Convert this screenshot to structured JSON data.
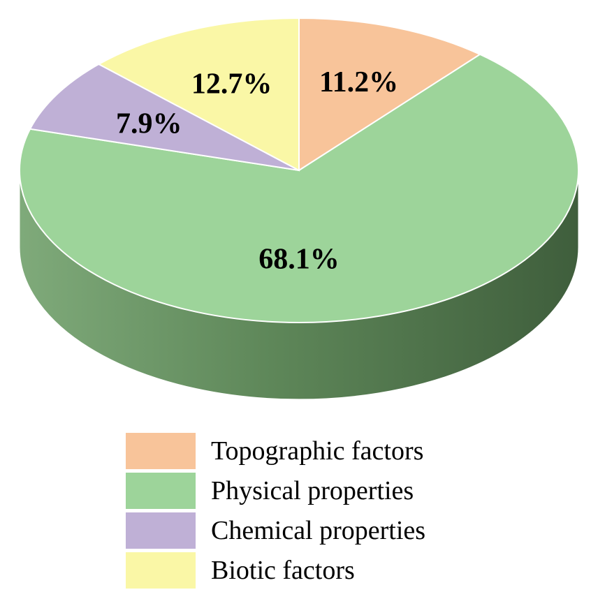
{
  "chart_data": {
    "type": "pie",
    "style": "3d",
    "slices": [
      {
        "label": "Topographic factors",
        "value": 11.2,
        "value_label": "11.2%",
        "color": "#F8C49A"
      },
      {
        "label": "Physical properties",
        "value": 68.1,
        "value_label": "68.1%",
        "color": "#9DD49A"
      },
      {
        "label": "Chemical properties",
        "value": 7.9,
        "value_label": "7.9%",
        "color": "#BFB0D6"
      },
      {
        "label": "Biotic factors",
        "value": 12.7,
        "value_label": "12.7%",
        "color": "#FAF7A6"
      }
    ],
    "legend_position": "bottom",
    "side_color_dark": "#3F5E3C",
    "side_color_light": "#7FAA7A"
  }
}
